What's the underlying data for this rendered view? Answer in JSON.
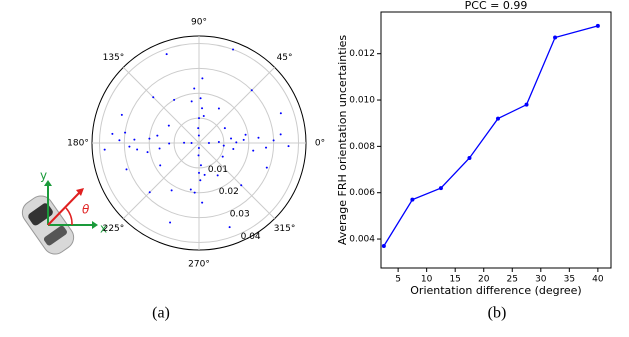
{
  "chart_data": [
    {
      "type": "polar-scatter",
      "color": "#0000ff",
      "theta": [
        2,
        178,
        5,
        183,
        358,
        175,
        1,
        181,
        4,
        186,
        356,
        174,
        3,
        179,
        8,
        188,
        352,
        172,
        0,
        180,
        6,
        184,
        354,
        177,
        10,
        190,
        350,
        170,
        90,
        270,
        88,
        272,
        93,
        268,
        95,
        265,
        85,
        275,
        91,
        269,
        87,
        273,
        80,
        280,
        100,
        260,
        30,
        60,
        120,
        150,
        210,
        240,
        300,
        330,
        45,
        135,
        225,
        315,
        20,
        160,
        200,
        340,
        110,
        250,
        70,
        290
      ],
      "r": [
        0.03,
        0.032,
        0.024,
        0.028,
        0.036,
        0.02,
        0.015,
        0.012,
        0.018,
        0.025,
        0.027,
        0.035,
        0.008,
        0.006,
        0.013,
        0.016,
        0.022,
        0.03,
        0.004,
        0.003,
        0.033,
        0.038,
        0.01,
        0.026,
        0.019,
        0.021,
        0.014,
        0.017,
        0.01,
        0.012,
        0.018,
        0.015,
        0.006,
        0.005,
        0.022,
        0.02,
        0.014,
        0.009,
        0.003,
        0.002,
        0.026,
        0.024,
        0.011,
        0.013,
        0.017,
        0.019,
        0.012,
        0.016,
        0.02,
        0.014,
        0.018,
        0.022,
        0.015,
        0.011,
        0.03,
        0.026,
        0.028,
        0.024,
        0.035,
        0.033,
        0.031,
        0.029,
        0.038,
        0.034,
        0.04,
        0.036
      ],
      "rlim": [
        0,
        0.043
      ],
      "rticks": [
        0.01,
        0.02,
        0.03,
        0.04
      ],
      "thetaticks": [
        {
          "value": 0,
          "label": "0°"
        },
        {
          "value": 45,
          "label": "45°"
        },
        {
          "value": 90,
          "label": "90°"
        },
        {
          "value": 135,
          "label": "135°"
        },
        {
          "value": 180,
          "label": "180°"
        },
        {
          "value": 225,
          "label": "225°"
        },
        {
          "value": 270,
          "label": "270°"
        },
        {
          "value": 315,
          "label": "315°"
        }
      ],
      "grid": true
    },
    {
      "type": "line",
      "title": "PCC = 0.99",
      "color": "#0000ff",
      "x_label": "Orientation difference (degree)",
      "y_label": "Average FRH orientation uncertainties",
      "x": [
        2.5,
        7.5,
        12.5,
        17.5,
        22.5,
        27.5,
        32.5,
        40
      ],
      "values": [
        0.0037,
        0.0057,
        0.0062,
        0.0075,
        0.0092,
        0.0098,
        0.0127,
        0.0132
      ],
      "xlim": [
        2.0,
        42.3
      ],
      "xticks": [
        5,
        10,
        15,
        20,
        25,
        30,
        35,
        40
      ],
      "ylim": [
        0.00275,
        0.0138
      ],
      "yticks": [
        0.004,
        0.006,
        0.008,
        {
          "value": 0.01,
          "label": "0.010"
        },
        0.012
      ]
    }
  ],
  "captions": [
    "(a)",
    "(b)"
  ],
  "icon_labels": {
    "x": "x",
    "y": "y",
    "theta": "θ"
  }
}
